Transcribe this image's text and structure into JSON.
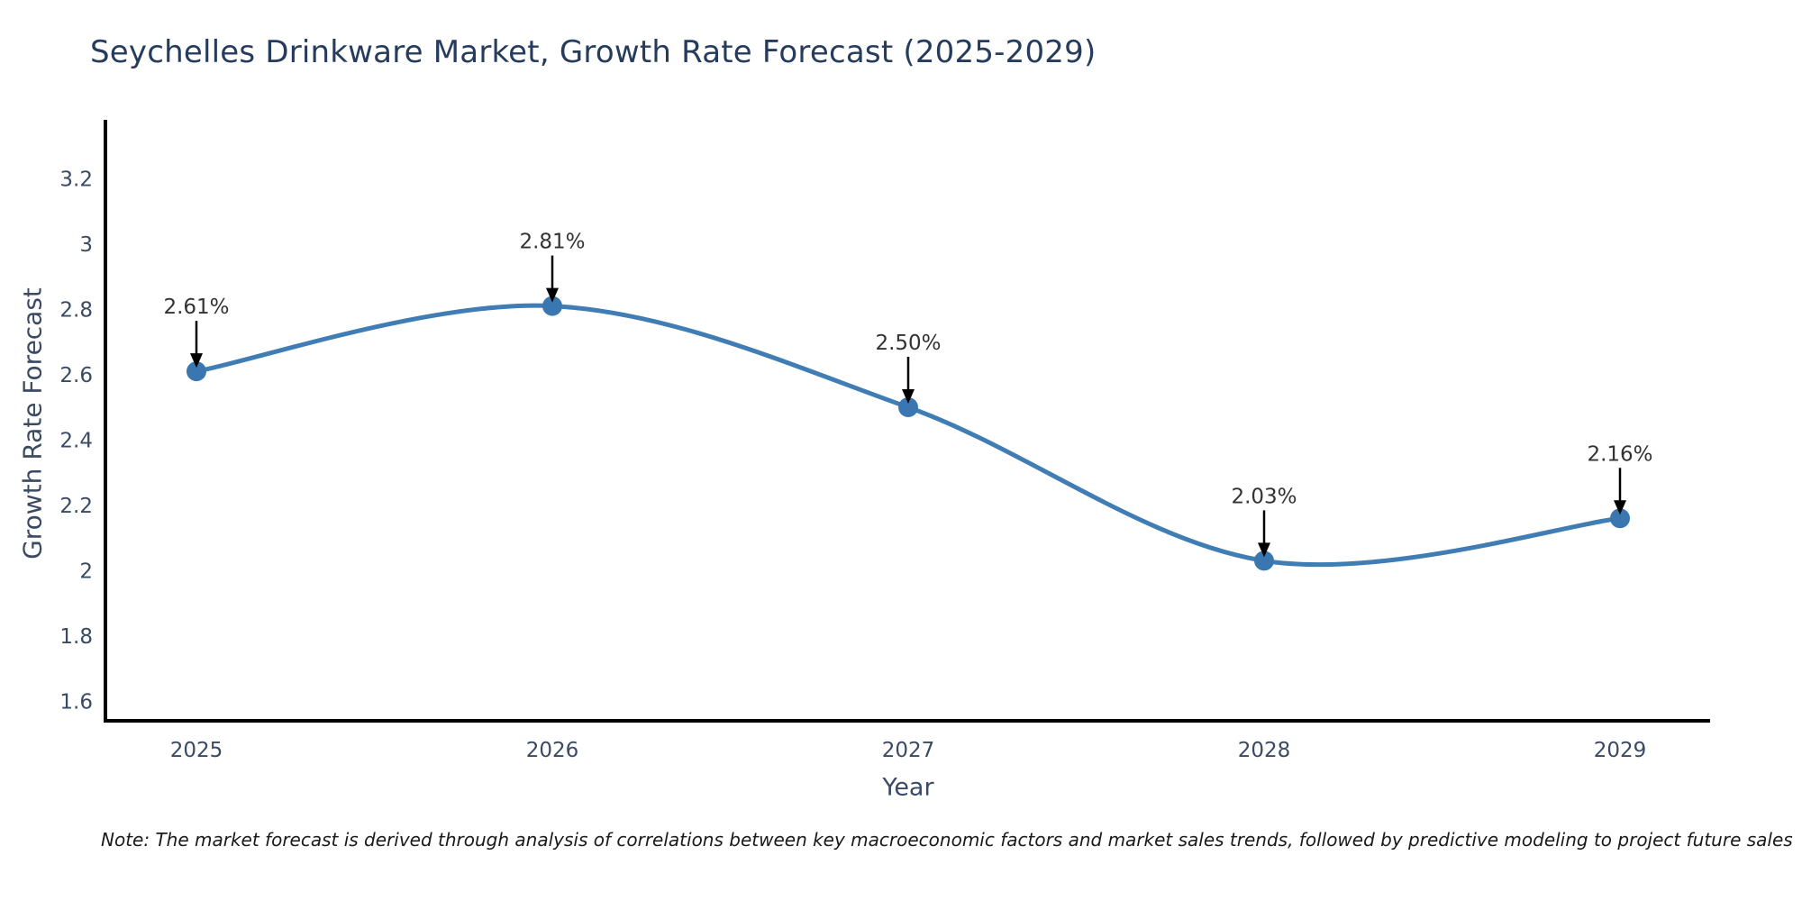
{
  "page": {
    "background": "#ffffff"
  },
  "chart_data": {
    "type": "line",
    "title": "Seychelles Drinkware Market, Growth Rate Forecast (2025-2029)",
    "xlabel": "Year",
    "ylabel": "Growth Rate Forecast",
    "categories": [
      "2025",
      "2026",
      "2027",
      "2028",
      "2029"
    ],
    "values": [
      2.61,
      2.81,
      2.5,
      2.03,
      2.16
    ],
    "point_labels": [
      "2.61%",
      "2.81%",
      "2.50%",
      "2.03%",
      "2.16%"
    ],
    "yticks": [
      {
        "value": 3.2,
        "label": "3.2"
      },
      {
        "value": 3.0,
        "label": "3"
      },
      {
        "value": 2.8,
        "label": "2.8"
      },
      {
        "value": 2.6,
        "label": "2.6"
      },
      {
        "value": 2.4,
        "label": "2.4"
      },
      {
        "value": 2.2,
        "label": "2.2"
      },
      {
        "value": 2.0,
        "label": "2"
      },
      {
        "value": 1.8,
        "label": "1.8"
      },
      {
        "value": 1.6,
        "label": "1.6"
      }
    ],
    "ylim": [
      1.54,
      3.38
    ],
    "line_shape": "spline",
    "grid": false,
    "legend": "none",
    "annotation_style": "down-arrow",
    "colors": {
      "line": "#3f7db4",
      "marker": "#3a77b0",
      "arrow": "#000000",
      "axis": "#000000",
      "title_text": "#263c5c",
      "tick_text": "#3b4a63",
      "annotation_text": "#333333",
      "note_text": "#1a1a1a"
    }
  },
  "note": {
    "text": "Note: The market forecast is derived through analysis of correlations between key macroeconomic factors and market sales trends, followed by predictive modeling to project future sales"
  }
}
